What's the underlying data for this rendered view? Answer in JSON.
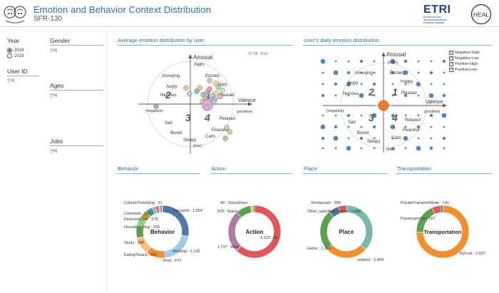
{
  "header": {
    "title": "Emotion and Behavior Context Distribution",
    "subtitle": "SFR-130",
    "etri_name": "ETRI",
    "etri_subtitle": "Electronics and Telecommunications Research Institute",
    "heai_name": "HEAL"
  },
  "filters": {
    "year_label": "Year",
    "years": [
      {
        "label": "2018",
        "selected": true
      },
      {
        "label": "2019",
        "selected": false
      }
    ],
    "user_id_label": "User ID",
    "user_id_value": "전체",
    "gender_label": "Gender",
    "gender_value": "전체",
    "ages_label": "Ages",
    "ages_value": "전체",
    "jobs_label": "Jobs",
    "jobs_value": "전체"
  },
  "avg_chart": {
    "section_title": "Average emotion distribution by user",
    "reset_label": "초기화 : ESC",
    "arousal": "Arousal",
    "high": "(high)",
    "low": "(low)",
    "valence": "Valence",
    "positive": "(positive)",
    "negative": "(negative)",
    "quadrants": [
      "1",
      "2",
      "3",
      "4"
    ],
    "emotions": {
      "annoying": "Annoying",
      "excited": "Excited",
      "angry": "Angry",
      "happy": "Happy",
      "nervous": "Nervous",
      "pleased": "Pleased",
      "sad": "Sad",
      "relaxed": "Relaxed",
      "bored": "Bored",
      "peaceful": "Peaceful",
      "sleepy": "Sleepy",
      "calm": "Calm"
    },
    "points": [
      {
        "v": 0.15,
        "a": 0.3,
        "c": "#7aa6d8"
      },
      {
        "v": 0.22,
        "a": 0.38,
        "c": "#f0b37a"
      },
      {
        "v": 0.3,
        "a": 0.22,
        "c": "#8fc28a"
      },
      {
        "v": 0.4,
        "a": 0.28,
        "c": "#c6a3d6"
      },
      {
        "v": 0.45,
        "a": 0.35,
        "c": "#e88a8a"
      },
      {
        "v": 0.52,
        "a": 0.2,
        "c": "#a3c6e8"
      },
      {
        "v": 0.6,
        "a": 0.26,
        "c": "#f5d28a"
      },
      {
        "v": 0.65,
        "a": 0.4,
        "c": "#98d0b8"
      },
      {
        "v": 0.58,
        "a": 0.12,
        "c": "#d9a0c8"
      },
      {
        "v": 0.48,
        "a": 0.1,
        "c": "#b8b8e0"
      },
      {
        "v": 0.35,
        "a": 0.14,
        "c": "#f2a6a6"
      },
      {
        "v": 0.75,
        "a": 0.32,
        "c": "#cfe3a6"
      },
      {
        "v": -0.1,
        "a": 0.38,
        "c": "#e6b875"
      },
      {
        "v": -0.02,
        "a": 0.24,
        "c": "#aec9e6"
      },
      {
        "v": 0.28,
        "a": 0.05,
        "c": "#f0c090"
      },
      {
        "v": 0.55,
        "a": 0.05,
        "c": "#9fd3c7"
      },
      {
        "v": 0.7,
        "a": 0.18,
        "c": "#e3a9a9"
      },
      {
        "v": 0.85,
        "a": -0.55,
        "c": "#b6d48a"
      },
      {
        "v": 0.92,
        "a": -0.65,
        "c": "#d8c27a"
      },
      {
        "v": 0.82,
        "a": -0.8,
        "c": "#a5c08a"
      },
      {
        "v": 0.4,
        "a": -0.02,
        "c": "#d7a3e3",
        "r": 8
      },
      {
        "v": -0.8,
        "a": -0.05,
        "c": "#7ea6c9"
      },
      {
        "v": 0.45,
        "a": 0.55,
        "c": "#c0c0c0"
      },
      {
        "v": 0.38,
        "a": -0.08,
        "c": "#e6b0cf"
      },
      {
        "v": 0.6,
        "a": 0.48,
        "c": "#f7c98a"
      }
    ]
  },
  "daily_chart": {
    "section_title": "User's daily emotion distribution",
    "legend": [
      {
        "label": "Negative-High",
        "checked": true
      },
      {
        "label": "Negative-Low",
        "checked": true
      },
      {
        "label": "Positive-High",
        "checked": true
      },
      {
        "label": "Positive-Low",
        "checked": true
      }
    ],
    "center_color": "#f07f3c",
    "dot_color": "#2f6fb3"
  },
  "behavior": {
    "section_title": "Behavior",
    "center_label": "Behavior",
    "slices": [
      {
        "label": "Transport : 1,554",
        "value": 1554,
        "color": "#4e79a7"
      },
      {
        "label": "Working : 1,136",
        "value": 1136,
        "color": "#a0cbe8"
      },
      {
        "label": "Rest : 672",
        "value": 672,
        "color": "#f28e2b"
      },
      {
        "label": "Eating/Snack : 602",
        "value": 602,
        "color": "#ffbe7d"
      },
      {
        "label": "Study : 398",
        "value": 398,
        "color": "#59a14f"
      },
      {
        "label": "HouseKeeping : 339",
        "value": 339,
        "color": "#8cd17d"
      },
      {
        "label": "PersonalCare : 278",
        "value": 278,
        "color": "#b6992d"
      },
      {
        "label": "Commute : 232",
        "value": 232,
        "color": "#499894"
      },
      {
        "label": "",
        "value": 120,
        "color": "#86bcb6"
      },
      {
        "label": "",
        "value": 90,
        "color": "#e15759"
      },
      {
        "label": "",
        "value": 70,
        "color": "#ff9d9a"
      },
      {
        "label": "",
        "value": 60,
        "color": "#79706e"
      },
      {
        "label": "Culture/Travelling : 21",
        "value": 21,
        "color": "#d37295"
      }
    ]
  },
  "action": {
    "section_title": "Action",
    "center_label": "Action",
    "slices": [
      {
        "label": "4,129 : Sit",
        "value": 4129,
        "color": "#e15759"
      },
      {
        "label": "1,737 : Walk",
        "value": 1737,
        "color": "#b07aa1"
      },
      {
        "label": "629 : Stand",
        "value": 629,
        "color": "#59a14f"
      },
      {
        "label": "99 : StaysDown",
        "value": 99,
        "color": "#edc948"
      },
      {
        "label": "",
        "value": 60,
        "color": "#4e79a7"
      }
    ]
  },
  "place": {
    "section_title": "Place",
    "center_label": "Place",
    "slices": [
      {
        "label": "Other_specified_indoor : 1,959",
        "value": 1959,
        "color": "#76b7b2"
      },
      {
        "label": "outdoor : 1,404",
        "value": 1404,
        "color": "#f28e2b"
      },
      {
        "label": "Home : 1,323",
        "value": 1323,
        "color": "#59a14f"
      },
      {
        "label": "",
        "value": 340,
        "color": "#4e79a7"
      },
      {
        "label": "Restaurant : 268",
        "value": 268,
        "color": "#e15759"
      }
    ]
  },
  "transportation": {
    "section_title": "Transportation",
    "center_label": "Transportation",
    "slices": [
      {
        "label": "ByFoot : 2,037",
        "value": 2037,
        "color": "#f28e2b"
      },
      {
        "label": "PassengerCar : 507",
        "value": 507,
        "color": "#59a14f"
      },
      {
        "label": "PrivateTransportMode : 141",
        "value": 141,
        "color": "#e15759"
      },
      {
        "label": "",
        "value": 40,
        "color": "#4e79a7"
      }
    ]
  }
}
